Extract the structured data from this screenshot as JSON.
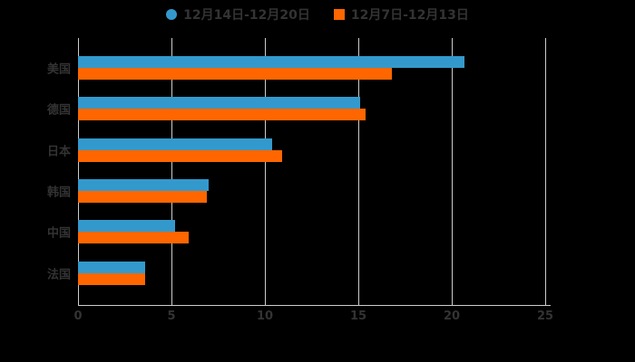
{
  "legend": {
    "items": [
      {
        "label": "12月14日-12月20日",
        "color": "#3399cc",
        "marker": "circle"
      },
      {
        "label": "12月7日-12月13日",
        "color": "#ff6600",
        "marker": "square"
      }
    ]
  },
  "chart_data": {
    "type": "bar",
    "orientation": "horizontal",
    "title": "",
    "xlabel": "",
    "ylabel": "",
    "categories": [
      "美国",
      "德国",
      "日本",
      "韩国",
      "中国",
      "法国"
    ],
    "series": [
      {
        "name": "12月14日-12月20日",
        "color": "#3399cc",
        "values": [
          20.7,
          15.1,
          10.4,
          7.0,
          5.2,
          3.6
        ]
      },
      {
        "name": "12月7日-12月13日",
        "color": "#ff6600",
        "values": [
          16.8,
          15.4,
          10.9,
          6.9,
          5.9,
          3.6
        ]
      }
    ],
    "x_ticks": [
      0,
      5,
      10,
      15,
      20,
      25
    ],
    "xlim": [
      0,
      25
    ],
    "grid": true,
    "legend_position": "top-center",
    "colors": {
      "background": "#000000",
      "grid": "#cccccc",
      "axis": "#cccccc",
      "text": "#333333"
    }
  }
}
